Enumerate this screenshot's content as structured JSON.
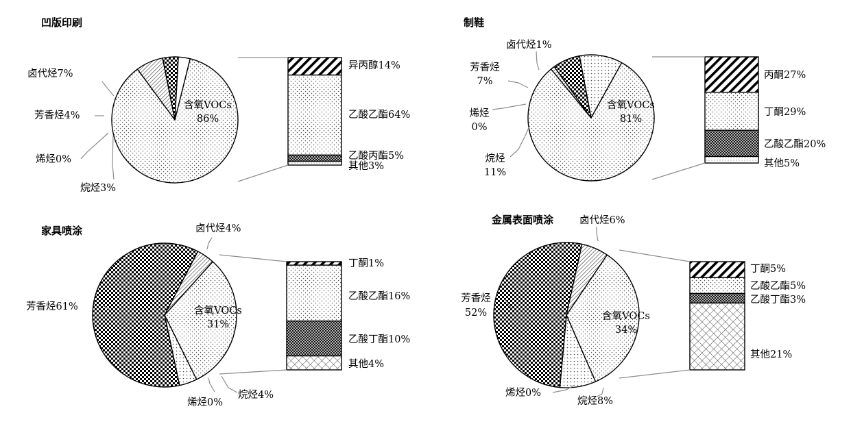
{
  "chart_data": [
    {
      "type": "bar-of-pie",
      "title": "凹版印刷",
      "pie": [
        {
          "name": "含氧VOCs",
          "value": 86,
          "pattern": "dots"
        },
        {
          "name": "卤代烃",
          "value": 7,
          "pattern": "diag"
        },
        {
          "name": "芳香烃",
          "value": 4,
          "pattern": "check"
        },
        {
          "name": "烯烃",
          "value": 0,
          "pattern": "dots"
        },
        {
          "name": "烷烃",
          "value": 3,
          "pattern": "white"
        }
      ],
      "pie_labels": [
        {
          "lines": [
            "含氧VOCs",
            "86%"
          ]
        },
        {
          "lines": [
            "卤代烃7%"
          ]
        },
        {
          "lines": [
            "芳香烃4%"
          ]
        },
        {
          "lines": [
            "烯烃0%"
          ]
        },
        {
          "lines": [
            "烷烃3%"
          ]
        }
      ],
      "bar": [
        {
          "name": "异丙醇",
          "value": 14,
          "pattern": "stripes"
        },
        {
          "name": "乙酸乙酯",
          "value": 64,
          "pattern": "dots"
        },
        {
          "name": "乙酸丙酯",
          "value": 5,
          "pattern": "dense"
        },
        {
          "name": "其他",
          "value": 3,
          "pattern": "light"
        }
      ],
      "bar_labels": [
        {
          "lines": [
            "异丙醇14%"
          ]
        },
        {
          "lines": [
            "乙酸乙酯64%"
          ]
        },
        {
          "lines": [
            "乙酸丙酯5%"
          ]
        },
        {
          "lines": [
            "其他3%"
          ]
        }
      ]
    },
    {
      "type": "bar-of-pie",
      "title": "制鞋",
      "pie": [
        {
          "name": "含氧VOCs",
          "value": 81,
          "pattern": "dots"
        },
        {
          "name": "卤代烃",
          "value": 1,
          "pattern": "diag"
        },
        {
          "name": "芳香烃",
          "value": 7,
          "pattern": "check"
        },
        {
          "name": "烯烃",
          "value": 0,
          "pattern": "dots"
        },
        {
          "name": "烷烃",
          "value": 11,
          "pattern": "dots2"
        }
      ],
      "pie_labels": [
        {
          "lines": [
            "含氧VOCs",
            "81%"
          ]
        },
        {
          "lines": [
            "卤代烃1%"
          ]
        },
        {
          "lines": [
            "芳香烃",
            "7%"
          ]
        },
        {
          "lines": [
            "烯烃",
            "0%"
          ]
        },
        {
          "lines": [
            "烷烃",
            "11%"
          ]
        }
      ],
      "bar": [
        {
          "name": "丙酮",
          "value": 27,
          "pattern": "stripes"
        },
        {
          "name": "丁酮",
          "value": 29,
          "pattern": "dots"
        },
        {
          "name": "乙酸乙酯",
          "value": 20,
          "pattern": "dense"
        },
        {
          "name": "其他",
          "value": 5,
          "pattern": "light"
        }
      ],
      "bar_labels": [
        {
          "lines": [
            "丙酮27%"
          ]
        },
        {
          "lines": [
            "丁酮29%"
          ]
        },
        {
          "lines": [
            "乙酸乙酯20%"
          ]
        },
        {
          "lines": [
            "其他5%"
          ]
        }
      ]
    },
    {
      "type": "bar-of-pie",
      "title": "家具喷涂",
      "pie": [
        {
          "name": "含氧VOCs",
          "value": 31,
          "pattern": "dots"
        },
        {
          "name": "烷烃",
          "value": 4,
          "pattern": "dots2"
        },
        {
          "name": "烯烃",
          "value": 0,
          "pattern": "dots"
        },
        {
          "name": "芳香烃",
          "value": 61,
          "pattern": "check"
        },
        {
          "name": "卤代烃",
          "value": 4,
          "pattern": "diag"
        }
      ],
      "pie_labels": [
        {
          "lines": [
            "含氧VOCs",
            "31%"
          ]
        },
        {
          "lines": [
            "烷烃4%"
          ]
        },
        {
          "lines": [
            "烯烃0%"
          ]
        },
        {
          "lines": [
            "芳香烃61%"
          ]
        },
        {
          "lines": [
            "卤代烃4%"
          ]
        }
      ],
      "bar": [
        {
          "name": "丁酮",
          "value": 1,
          "pattern": "stripes"
        },
        {
          "name": "乙酸乙酯",
          "value": 16,
          "pattern": "dots"
        },
        {
          "name": "乙酸丁酯",
          "value": 10,
          "pattern": "dense"
        },
        {
          "name": "其他",
          "value": 4,
          "pattern": "cross"
        }
      ],
      "bar_labels": [
        {
          "lines": [
            "丁酮1%"
          ]
        },
        {
          "lines": [
            "乙酸乙酯16%"
          ]
        },
        {
          "lines": [
            "乙酸丁酯10%"
          ]
        },
        {
          "lines": [
            "其他4%"
          ]
        }
      ]
    },
    {
      "type": "bar-of-pie",
      "title": "金属表面喷涂",
      "pie": [
        {
          "name": "含氧VOCs",
          "value": 34,
          "pattern": "dots"
        },
        {
          "name": "烷烃",
          "value": 8,
          "pattern": "dots2"
        },
        {
          "name": "烯烃",
          "value": 0,
          "pattern": "dots"
        },
        {
          "name": "芳香烃",
          "value": 52,
          "pattern": "check"
        },
        {
          "name": "卤代烃",
          "value": 6,
          "pattern": "diag"
        }
      ],
      "pie_labels": [
        {
          "lines": [
            "含氧VOCs",
            "34%"
          ]
        },
        {
          "lines": [
            "烷烃8%"
          ]
        },
        {
          "lines": [
            "烯烃0%"
          ]
        },
        {
          "lines": [
            "芳香烃",
            "52%"
          ]
        },
        {
          "lines": [
            "卤代烃6%"
          ]
        }
      ],
      "bar": [
        {
          "name": "丁酮",
          "value": 5,
          "pattern": "stripes"
        },
        {
          "name": "乙酸乙酯",
          "value": 5,
          "pattern": "dots"
        },
        {
          "name": "乙酸丁酯",
          "value": 3,
          "pattern": "dense"
        },
        {
          "name": "其他",
          "value": 21,
          "pattern": "cross"
        }
      ],
      "bar_labels": [
        {
          "lines": [
            "丁酮5%"
          ]
        },
        {
          "lines": [
            "乙酸乙酯5%"
          ]
        },
        {
          "lines": [
            "乙酸丁酯3%"
          ]
        },
        {
          "lines": [
            "其他21%"
          ]
        }
      ]
    }
  ]
}
